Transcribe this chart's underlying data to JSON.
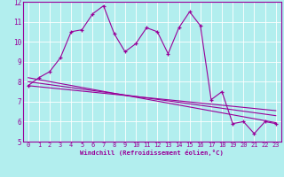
{
  "xlabel": "Windchill (Refroidissement éolien,°C)",
  "x": [
    0,
    1,
    2,
    3,
    4,
    5,
    6,
    7,
    8,
    9,
    10,
    11,
    12,
    13,
    14,
    15,
    16,
    17,
    18,
    19,
    20,
    21,
    22,
    23
  ],
  "y_main": [
    7.8,
    8.2,
    8.5,
    9.2,
    10.5,
    10.6,
    11.4,
    11.8,
    10.4,
    9.5,
    9.9,
    10.7,
    10.5,
    9.4,
    10.7,
    11.5,
    10.8,
    7.1,
    7.5,
    5.9,
    6.0,
    5.4,
    6.0,
    5.9
  ],
  "trend_lines": [
    [
      7.8,
      6.55
    ],
    [
      8.0,
      6.3
    ],
    [
      8.2,
      5.95
    ]
  ],
  "ylim": [
    5,
    12
  ],
  "xlim": [
    -0.5,
    23.5
  ],
  "yticks": [
    5,
    6,
    7,
    8,
    9,
    10,
    11,
    12
  ],
  "xticks": [
    0,
    1,
    2,
    3,
    4,
    5,
    6,
    7,
    8,
    9,
    10,
    11,
    12,
    13,
    14,
    15,
    16,
    17,
    18,
    19,
    20,
    21,
    22,
    23
  ],
  "line_color": "#990099",
  "bg_color": "#b2eeee",
  "grid_color": "#ffffff",
  "font_color": "#990099"
}
